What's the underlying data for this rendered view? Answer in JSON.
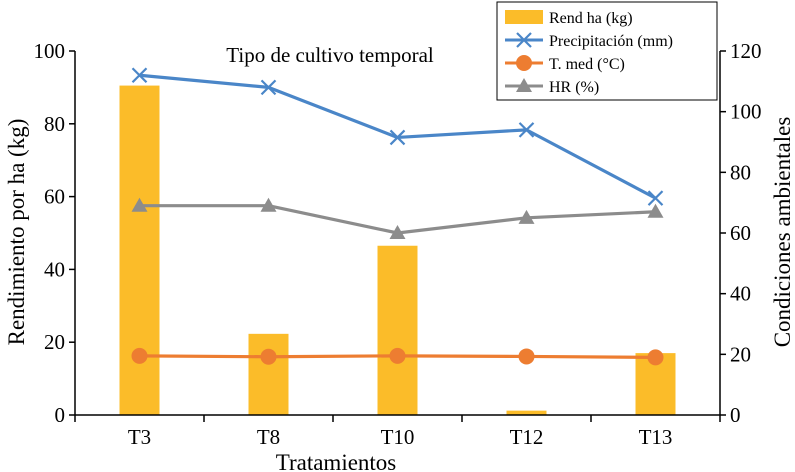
{
  "chart_data": {
    "type": "bar",
    "title": "Tipo de cultivo temporal",
    "xlabel": "Tratamientos",
    "ylabel": "Rendimiento por ha (kg)",
    "y2label": "Condiciones ambientales",
    "categories": [
      "T3",
      "T8",
      "T10",
      "T12",
      "T13"
    ],
    "ylim": [
      0,
      100
    ],
    "y2lim": [
      0,
      120
    ],
    "yticks": [
      "0",
      "20",
      "40",
      "60",
      "80",
      "100"
    ],
    "y2ticks": [
      "0",
      "20",
      "40",
      "60",
      "80",
      "100",
      "120"
    ],
    "series": [
      {
        "name": "Rend ha (kg)",
        "type": "bar",
        "axis": "left",
        "color": "#FBBC29",
        "values": [
          90.5,
          22.3,
          46.5,
          1.2,
          17.0
        ]
      },
      {
        "name": "Precipitación (mm)",
        "type": "line",
        "axis": "right",
        "color": "#4A86C8",
        "marker": "x",
        "values": [
          112,
          108,
          91.5,
          94,
          71.5
        ]
      },
      {
        "name": "T. med (°C)",
        "type": "line",
        "axis": "right",
        "color": "#ED7D31",
        "marker": "circle",
        "values": [
          19.5,
          19.2,
          19.5,
          19.3,
          19.0
        ]
      },
      {
        "name": "HR (%)",
        "type": "line",
        "axis": "right",
        "color": "#8C8C8C",
        "marker": "triangle",
        "values": [
          69,
          69,
          60,
          65,
          67
        ]
      }
    ],
    "legend_position": "top-right"
  }
}
